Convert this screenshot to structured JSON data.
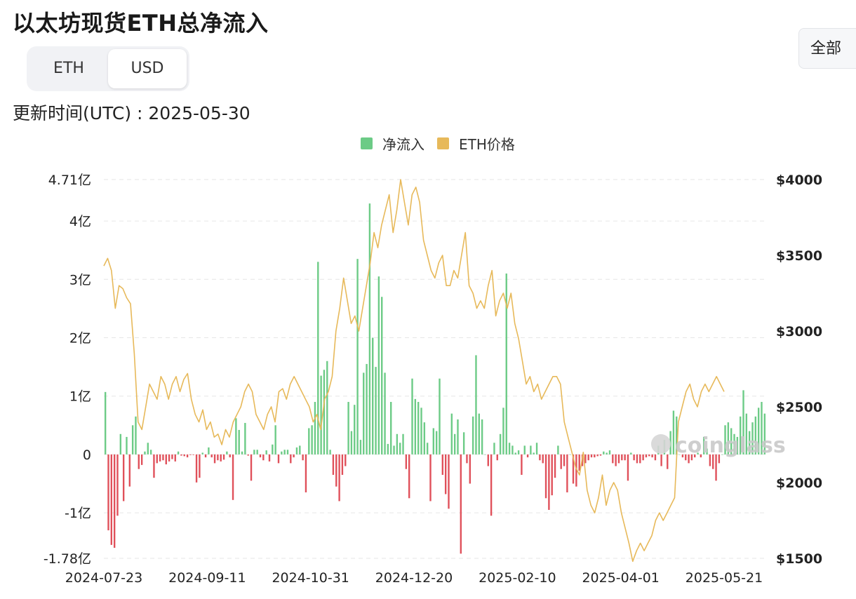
{
  "title": "以太坊现货ETH总净流入",
  "toggle": {
    "eth_label": "ETH",
    "usd_label": "USD",
    "selected": "USD"
  },
  "range_button": "全部",
  "updated": "更新时间(UTC) : 2025-05-30",
  "watermark": "coinglass",
  "colors": {
    "inflow": "#6ccb86",
    "outflow": "#e0505a",
    "price": "#e7b95a"
  },
  "chart_data": {
    "type": "bar",
    "title": "以太坊现货ETH总净流入",
    "legend": [
      {
        "name": "净流入",
        "color": "#6ccb86"
      },
      {
        "name": "ETH价格",
        "color": "#e7b95a"
      }
    ],
    "legend_position": "top-center",
    "grid": true,
    "y_left": {
      "label": "",
      "range": [
        -1.78,
        4.71
      ],
      "ticks": [
        -1.78,
        -1,
        0,
        1,
        2,
        3,
        4,
        4.71
      ],
      "tick_labels": [
        "-1.78亿",
        "-1亿",
        "0",
        "1亿",
        "2亿",
        "3亿",
        "4亿",
        "4.71亿"
      ]
    },
    "y_right": {
      "label": "",
      "range": [
        1500,
        4000
      ],
      "ticks": [
        1500,
        2000,
        2500,
        3000,
        3500,
        4000
      ],
      "tick_labels": [
        "$1500",
        "$2000",
        "$2500",
        "$3000",
        "$3500",
        "$4000"
      ]
    },
    "x_tick_labels": [
      "2024-07-23",
      "2024-09-11",
      "2024-10-31",
      "2024-12-20",
      "2025-02-10",
      "2025-04-01",
      "2025-05-21"
    ],
    "x_start": "2024-07-23",
    "x_end": "2025-05-30",
    "series": [
      {
        "name": "净流入",
        "type": "bar",
        "unit": "亿",
        "values": [
          1.07,
          -1.3,
          -1.55,
          -1.6,
          -1.05,
          0.35,
          -0.8,
          0.3,
          -0.55,
          0.5,
          0.65,
          -0.25,
          -0.18,
          0.05,
          0.2,
          0.08,
          -0.4,
          -0.15,
          -0.12,
          -0.1,
          -0.17,
          -0.12,
          -0.08,
          -0.12,
          0.05,
          -0.02,
          -0.03,
          -0.05,
          -0.01,
          -0.01,
          -0.48,
          -0.4,
          0.03,
          -0.05,
          0.12,
          -0.05,
          -0.15,
          -0.1,
          -0.12,
          -0.09,
          0.05,
          -0.05,
          -0.78,
          0.62,
          0.42,
          0.05,
          0.54,
          -0.02,
          -0.45,
          0.08,
          0.08,
          -0.05,
          -0.1,
          0.07,
          -0.12,
          0.17,
          0.5,
          -0.15,
          0.05,
          0.08,
          0.08,
          -0.15,
          -0.05,
          0.12,
          0.15,
          -0.1,
          -0.65,
          0.45,
          0.5,
          0.9,
          3.3,
          1.35,
          1.45,
          1.6,
          0.08,
          -0.35,
          -0.55,
          -0.8,
          -0.35,
          -0.2,
          0.9,
          0.4,
          0.85,
          3.35,
          0.25,
          1.4,
          1.55,
          4.3,
          2.0,
          1.5,
          3.05,
          2.7,
          1.4,
          0.18,
          0.9,
          0.15,
          0.35,
          0.2,
          0.35,
          -0.25,
          -0.75,
          1.3,
          0.95,
          0.9,
          0.8,
          0.55,
          0.2,
          -0.8,
          0.45,
          0.4,
          1.3,
          -0.35,
          -0.68,
          -0.93,
          0.7,
          0.35,
          0.6,
          -1.7,
          0.38,
          -0.15,
          -0.5,
          0.65,
          1.7,
          0.7,
          0.6,
          0.0,
          -0.2,
          -1.05,
          0.2,
          -0.1,
          0.35,
          0.8,
          3.1,
          0.2,
          0.15,
          0.03,
          0.07,
          -0.35,
          0.15,
          -0.05,
          0.15,
          0.03,
          0.2,
          -0.1,
          -0.15,
          -0.75,
          -0.95,
          -0.7,
          -0.4,
          0.15,
          -0.25,
          -0.2,
          -0.65,
          0.0,
          -0.5,
          -0.55,
          -0.28,
          -0.2,
          -0.15,
          -0.1,
          -0.05,
          -0.05,
          -0.03,
          -0.02,
          0.05,
          0.03,
          0.07,
          -0.15,
          -0.2,
          -0.15,
          -0.1,
          -0.1,
          -0.45,
          0.03,
          -0.1,
          -0.15,
          -0.15,
          -0.1,
          -0.05,
          -0.03,
          -0.05,
          -0.1,
          0.15,
          -0.2,
          0.25,
          -0.25,
          0.4,
          0.75,
          0.65,
          0.0,
          -0.05,
          -0.1,
          -0.15,
          -0.1,
          -0.05,
          0.03,
          -0.05,
          0.3,
          0.1,
          -0.2,
          -0.25,
          -0.45,
          -0.15,
          0.0,
          0.5,
          0.55,
          0.45,
          0.35,
          0.3,
          0.65,
          1.1,
          0.7,
          0.4,
          0.55,
          0.65,
          0.8,
          0.9,
          0.7
        ],
        "color_positive": "#6ccb86",
        "color_negative": "#e0505a"
      },
      {
        "name": "ETH价格",
        "type": "line",
        "axis": "right",
        "unit": "$",
        "values": [
          3430,
          3480,
          3400,
          3150,
          3300,
          3280,
          3220,
          3180,
          2850,
          2400,
          2350,
          2500,
          2650,
          2600,
          2550,
          2700,
          2650,
          2550,
          2650,
          2700,
          2600,
          2680,
          2720,
          2550,
          2450,
          2400,
          2480,
          2350,
          2400,
          2300,
          2320,
          2250,
          2350,
          2300,
          2400,
          2450,
          2500,
          2600,
          2650,
          2600,
          2450,
          2400,
          2350,
          2450,
          2500,
          2400,
          2600,
          2620,
          2550,
          2650,
          2700,
          2650,
          2600,
          2550,
          2500,
          2400,
          2450,
          2350,
          2550,
          2600,
          2700,
          3000,
          3150,
          3350,
          3200,
          3050,
          3100,
          3000,
          3150,
          3300,
          3450,
          3650,
          3550,
          3700,
          3800,
          3900,
          3650,
          3800,
          4000,
          3850,
          3700,
          3900,
          3950,
          3850,
          3600,
          3500,
          3400,
          3350,
          3450,
          3500,
          3300,
          3300,
          3400,
          3350,
          3500,
          3650,
          3300,
          3250,
          3150,
          3200,
          3150,
          3300,
          3400,
          3100,
          3200,
          3250,
          3150,
          3250,
          3050,
          2950,
          2800,
          2650,
          2700,
          2600,
          2650,
          2550,
          2600,
          2650,
          2700,
          2700,
          2650,
          2400,
          2300,
          2200,
          2100,
          2050,
          2200,
          1950,
          1850,
          1800,
          1900,
          2050,
          1850,
          1950,
          2000,
          1950,
          1800,
          1700,
          1600,
          1480,
          1550,
          1600,
          1550,
          1600,
          1650,
          1750,
          1800,
          1750,
          1800,
          1850,
          1900,
          2400,
          2500,
          2600,
          2650,
          2550,
          2500,
          2600,
          2650,
          2600,
          2650,
          2700,
          2650,
          2600
        ]
      }
    ]
  }
}
